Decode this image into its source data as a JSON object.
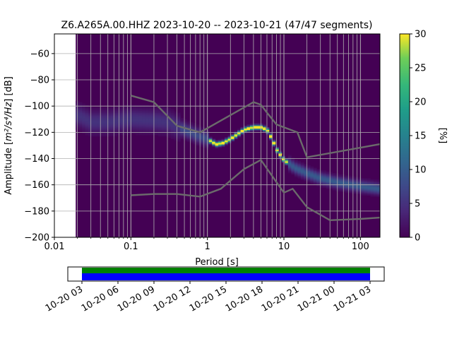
{
  "chart_data": {
    "type": "heatmap",
    "title": "Z6.A265A.00.HHZ   2023-10-20 -- 2023-10-21  (47/47 segments)",
    "xlabel": "Period [s]",
    "ylabel_prefix": "Amplitude [",
    "ylabel_unit": "m²/s⁴/Hz",
    "ylabel_suffix": "] [dB]",
    "x_scale": "log",
    "xlim": [
      0.01,
      180
    ],
    "ylim": [
      -200,
      -45
    ],
    "x_ticks": [
      {
        "value": 0.01,
        "label": "0.01"
      },
      {
        "value": 0.1,
        "label": "0.1"
      },
      {
        "value": 1,
        "label": "1"
      },
      {
        "value": 10,
        "label": "10"
      },
      {
        "value": 100,
        "label": "100"
      }
    ],
    "y_ticks": [
      {
        "value": -60,
        "label": "−60"
      },
      {
        "value": -80,
        "label": "−80"
      },
      {
        "value": -100,
        "label": "−100"
      },
      {
        "value": -120,
        "label": "−120"
      },
      {
        "value": -140,
        "label": "−140"
      },
      {
        "value": -160,
        "label": "−160"
      },
      {
        "value": -180,
        "label": "−180"
      },
      {
        "value": -200,
        "label": "−200"
      }
    ],
    "grid": true,
    "period_min": 0.019,
    "psd_mode": [
      [
        0.02,
        -107
      ],
      [
        0.03,
        -112
      ],
      [
        0.05,
        -112
      ],
      [
        0.1,
        -110
      ],
      [
        0.2,
        -111
      ],
      [
        0.3,
        -112
      ],
      [
        0.5,
        -118
      ],
      [
        0.8,
        -123
      ],
      [
        1.0,
        -125
      ],
      [
        1.3,
        -129
      ],
      [
        1.6,
        -128
      ],
      [
        2.0,
        -125
      ],
      [
        3.0,
        -118
      ],
      [
        4.0,
        -116
      ],
      [
        5.0,
        -116
      ],
      [
        6.0,
        -118
      ],
      [
        7.0,
        -125
      ],
      [
        8.0,
        -133
      ],
      [
        10,
        -141
      ],
      [
        14,
        -147
      ],
      [
        20,
        -151
      ],
      [
        30,
        -155
      ],
      [
        50,
        -158
      ],
      [
        100,
        -161
      ],
      [
        180,
        -163
      ]
    ],
    "nhnm": [
      [
        0.1,
        -92
      ],
      [
        0.2,
        -97
      ],
      [
        0.4,
        -115
      ],
      [
        0.8,
        -120
      ],
      [
        4.0,
        -97
      ],
      [
        5.0,
        -99
      ],
      [
        6.0,
        -105
      ],
      [
        8.0,
        -114
      ],
      [
        15,
        -120
      ],
      [
        20,
        -139
      ],
      [
        180,
        -129
      ]
    ],
    "nlnm": [
      [
        0.1,
        -168
      ],
      [
        0.2,
        -167
      ],
      [
        0.4,
        -167
      ],
      [
        0.8,
        -169
      ],
      [
        1.5,
        -163
      ],
      [
        3.0,
        -148
      ],
      [
        5.0,
        -141
      ],
      [
        8.0,
        -158
      ],
      [
        10,
        -166
      ],
      [
        13,
        -163
      ],
      [
        20,
        -177
      ],
      [
        40,
        -187
      ],
      [
        100,
        -186
      ],
      [
        180,
        -185
      ]
    ],
    "colorbar": {
      "label": "[%]",
      "range": [
        0,
        30
      ],
      "ticks": [
        {
          "value": 0,
          "label": "0"
        },
        {
          "value": 5,
          "label": "5"
        },
        {
          "value": 10,
          "label": "10"
        },
        {
          "value": 15,
          "label": "15"
        },
        {
          "value": 20,
          "label": "20"
        },
        {
          "value": 25,
          "label": "25"
        },
        {
          "value": 30,
          "label": "30"
        }
      ]
    },
    "timeline": {
      "time_ticks": [
        "10-20 03",
        "10-20 06",
        "10-20 09",
        "10-20 12",
        "10-20 15",
        "10-20 18",
        "10-20 21",
        "10-21 00",
        "10-21 03"
      ],
      "coverage_color": "#0000ff",
      "data_color": "#008000"
    }
  }
}
